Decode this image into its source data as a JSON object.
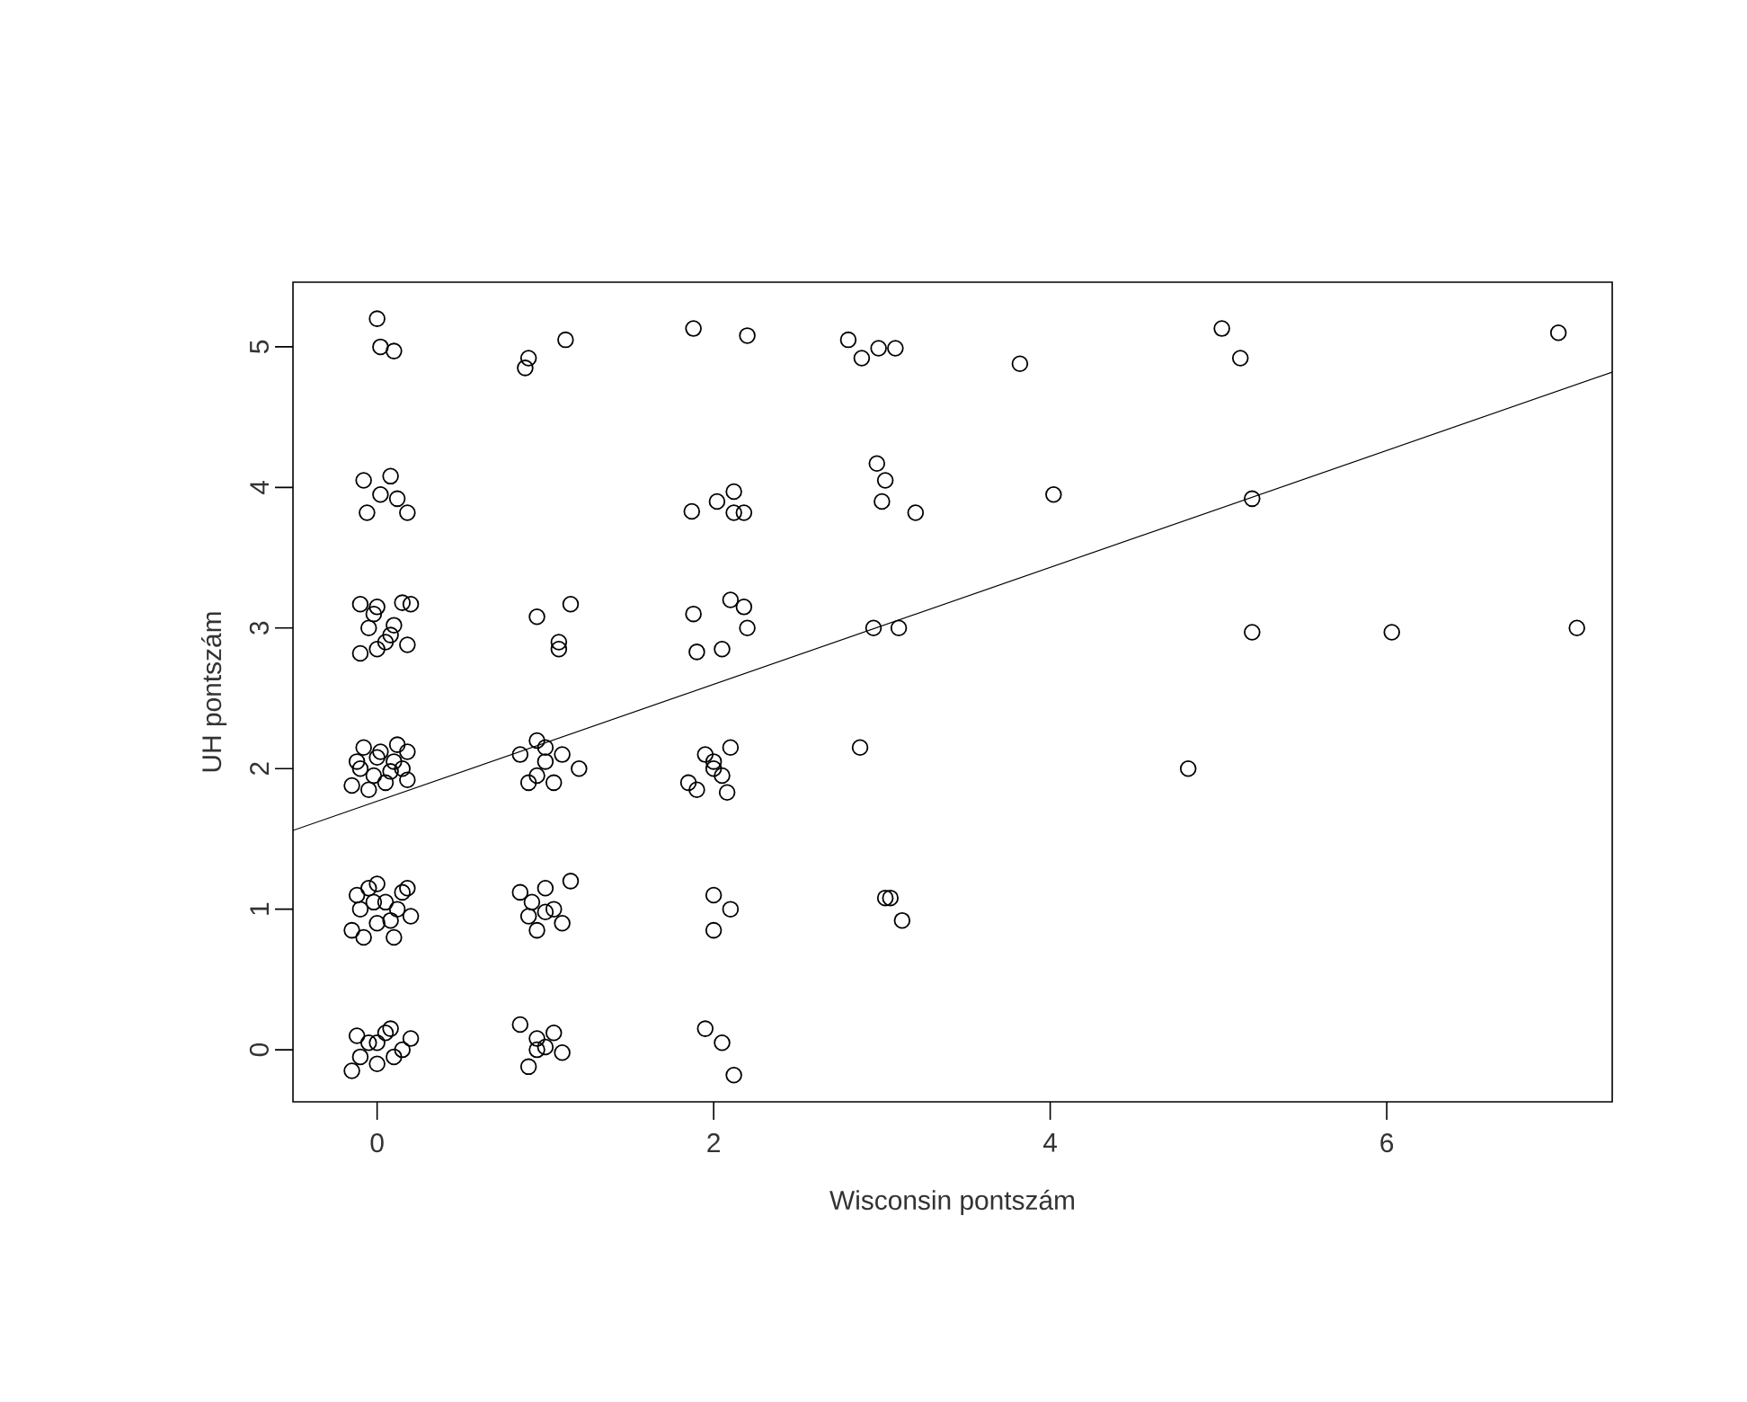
{
  "chart_data": {
    "type": "scatter",
    "xlabel": "Wisconsin pontszám",
    "ylabel": "UH pontszám",
    "xlim": [
      -0.5,
      7.34
    ],
    "ylim": [
      -0.37,
      5.46
    ],
    "xticks": [
      0,
      2,
      4,
      6
    ],
    "yticks": [
      0,
      1,
      2,
      3,
      4,
      5
    ],
    "series": [
      {
        "color": "#000000",
        "marker": "circle",
        "x": [
          0.0,
          0.02,
          0.1,
          0.88,
          0.9,
          1.12,
          1.88,
          2.2,
          2.8,
          2.88,
          2.98,
          3.08,
          3.82,
          5.02,
          5.13,
          7.02,
          -0.08,
          -0.06,
          0.08,
          0.02,
          0.12,
          0.18,
          1.87,
          2.02,
          2.12,
          2.12,
          2.18,
          2.97,
          3.02,
          3.0,
          3.2,
          4.02,
          5.2,
          -0.1,
          -0.05,
          -0.1,
          0.0,
          0.05,
          0.1,
          0.15,
          0.2,
          0.18,
          0.0,
          -0.02,
          0.08,
          0.95,
          1.08,
          1.08,
          1.15,
          1.88,
          1.9,
          2.05,
          2.1,
          2.18,
          2.2,
          2.95,
          3.1,
          5.2,
          6.03,
          7.13,
          -0.15,
          -0.12,
          -0.08,
          -0.02,
          0.02,
          0.05,
          0.1,
          0.12,
          0.18,
          0.18,
          -0.1,
          0.0,
          0.08,
          -0.05,
          0.15,
          0.85,
          0.9,
          0.95,
          1.0,
          1.05,
          1.1,
          1.2,
          0.95,
          1.0,
          1.85,
          1.9,
          2.0,
          2.05,
          2.1,
          2.08,
          2.0,
          1.95,
          2.87,
          4.82,
          -0.15,
          -0.12,
          -0.05,
          0.0,
          0.05,
          0.1,
          0.15,
          0.2,
          -0.1,
          0.0,
          0.08,
          0.18,
          -0.08,
          0.12,
          -0.02,
          0.85,
          0.9,
          0.95,
          1.0,
          1.05,
          1.1,
          1.15,
          0.92,
          1.0,
          2.0,
          2.1,
          2.0,
          3.02,
          3.05,
          3.12,
          -0.15,
          -0.12,
          -0.05,
          0.0,
          0.05,
          0.1,
          0.15,
          0.2,
          -0.1,
          0.08,
          0.0,
          0.85,
          0.9,
          0.95,
          1.0,
          1.05,
          1.1,
          0.95,
          1.95,
          2.05,
          2.12
        ],
        "values": [
          5.2,
          5.0,
          4.97,
          4.85,
          4.92,
          5.05,
          5.13,
          5.08,
          5.05,
          4.92,
          4.99,
          4.99,
          4.88,
          5.13,
          4.92,
          5.1,
          4.05,
          3.82,
          4.08,
          3.95,
          3.92,
          3.82,
          3.83,
          3.9,
          3.97,
          3.82,
          3.82,
          4.17,
          4.05,
          3.9,
          3.82,
          3.95,
          3.92,
          3.17,
          3.0,
          2.82,
          3.15,
          2.9,
          3.02,
          3.18,
          3.17,
          2.88,
          2.85,
          3.1,
          2.95,
          3.08,
          2.9,
          2.85,
          3.17,
          3.1,
          2.83,
          2.85,
          3.2,
          3.15,
          3.0,
          3.0,
          3.0,
          2.97,
          2.97,
          3.0,
          1.88,
          2.05,
          2.15,
          1.95,
          2.12,
          1.9,
          2.05,
          2.17,
          2.12,
          1.92,
          2.0,
          2.08,
          1.98,
          1.85,
          2.0,
          2.1,
          1.9,
          2.2,
          2.05,
          1.9,
          2.1,
          2.0,
          1.95,
          2.15,
          1.9,
          1.85,
          2.0,
          1.95,
          2.15,
          1.83,
          2.05,
          2.1,
          2.15,
          2.0,
          0.85,
          1.1,
          1.15,
          0.9,
          1.05,
          0.8,
          1.12,
          0.95,
          1.0,
          1.18,
          0.92,
          1.15,
          0.8,
          1.0,
          1.05,
          1.12,
          0.95,
          0.85,
          1.15,
          1.0,
          0.9,
          1.2,
          1.05,
          0.98,
          1.1,
          1.0,
          0.85,
          1.08,
          1.08,
          0.92,
          -0.15,
          0.1,
          0.05,
          -0.1,
          0.12,
          -0.05,
          0.0,
          0.08,
          -0.05,
          0.15,
          0.05,
          0.18,
          -0.12,
          0.08,
          0.02,
          0.12,
          -0.02,
          0.0,
          0.15,
          0.05,
          -0.18
        ]
      },
      {
        "type": "line",
        "color": "#000000",
        "marker": "none",
        "x": [
          -0.5,
          7.34
        ],
        "values": [
          1.56,
          4.82
        ]
      }
    ]
  }
}
